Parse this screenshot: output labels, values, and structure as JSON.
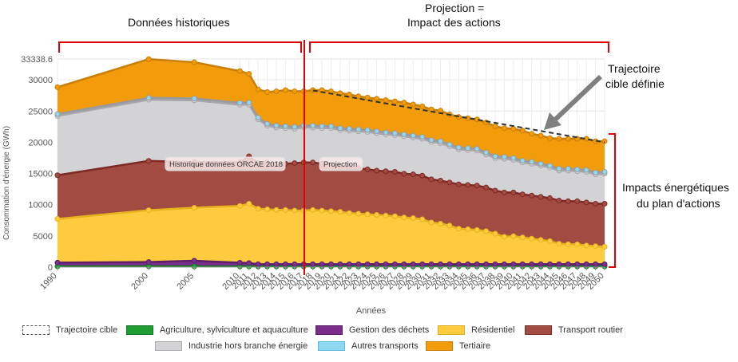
{
  "annotations": {
    "historical": "Données historiques",
    "projection_line1": "Projection =",
    "projection_line2": "Impact des actions",
    "target_line1": "Trajectoire",
    "target_line2": "cible définie",
    "impacts_line1": "Impacts énergétiques",
    "impacts_line2": "du plan d'actions"
  },
  "colors": {
    "agriculture": "#1f9e34",
    "dechets": "#7b2d8b",
    "residentiel": "#fecb3e",
    "transport_routier": "#a24b43",
    "industrie": "#d3d3d6",
    "autres_transports": "#8fd6f0",
    "tertiaire": "#f29c0b",
    "red_marker": "#e00000",
    "arrow": "#7f7f7f"
  },
  "chart_data": {
    "type": "area",
    "stacked": true,
    "ylabel": "Consommation d'énergie (GWh)",
    "xlabel": "Années",
    "ylim": [
      0,
      33338.6
    ],
    "yticks": [
      "0",
      "5000",
      "10000",
      "15000",
      "20000",
      "25000",
      "30000",
      "33338.6"
    ],
    "x": [
      1990,
      2000,
      2005,
      2010,
      2011,
      2012,
      2013,
      2014,
      2015,
      2016,
      2017,
      2018,
      2019,
      2020,
      2021,
      2022,
      2023,
      2024,
      2025,
      2026,
      2027,
      2028,
      2029,
      2030,
      2031,
      2032,
      2033,
      2034,
      2035,
      2036,
      2037,
      2038,
      2039,
      2040,
      2041,
      2042,
      2043,
      2044,
      2045,
      2046,
      2047,
      2048,
      2049,
      2050
    ],
    "plot_labels": {
      "historique": "Historique données ORCAE 2018",
      "projection": "Projection"
    },
    "series": [
      {
        "name": "Agriculture, sylviculture et aquaculture",
        "values": [
          120,
          120,
          120,
          110,
          110,
          110,
          110,
          110,
          110,
          110,
          110,
          110,
          110,
          110,
          110,
          110,
          110,
          110,
          110,
          110,
          110,
          110,
          110,
          110,
          110,
          110,
          110,
          110,
          110,
          110,
          110,
          110,
          110,
          110,
          110,
          110,
          110,
          110,
          110,
          110,
          110,
          110,
          110,
          110
        ]
      },
      {
        "name": "Gestion des déchets",
        "values": [
          600,
          700,
          900,
          600,
          550,
          350,
          350,
          350,
          350,
          350,
          350,
          350,
          350,
          350,
          350,
          350,
          350,
          350,
          350,
          350,
          350,
          350,
          350,
          350,
          350,
          350,
          350,
          350,
          350,
          350,
          350,
          350,
          350,
          350,
          350,
          350,
          350,
          350,
          350,
          350,
          350,
          350,
          350,
          350
        ]
      },
      {
        "name": "Résidentiel",
        "values": [
          7000,
          8300,
          8500,
          9100,
          9500,
          8900,
          8800,
          8700,
          8700,
          8600,
          8600,
          8700,
          8600,
          8500,
          8400,
          8200,
          8100,
          8000,
          7900,
          7800,
          7700,
          7500,
          7400,
          7200,
          6700,
          6500,
          6200,
          5700,
          5600,
          5500,
          5300,
          4900,
          4400,
          4500,
          4300,
          4100,
          3900,
          3700,
          3300,
          3200,
          3200,
          3000,
          2900,
          2800
        ]
      },
      {
        "name": "Transport routier",
        "values": [
          7000,
          7900,
          7300,
          7000,
          7600,
          7300,
          7500,
          7400,
          7400,
          7600,
          7700,
          7600,
          7500,
          7500,
          7300,
          7300,
          7300,
          7200,
          7100,
          7100,
          7100,
          7000,
          7000,
          7000,
          6900,
          6900,
          6900,
          7100,
          7100,
          7100,
          7000,
          6900,
          7100,
          7000,
          6900,
          6900,
          6900,
          6900,
          6900,
          6900,
          6900,
          6900,
          6800,
          6900
        ]
      },
      {
        "name": "Industrie hors branche énergie",
        "values": [
          9500,
          9800,
          9900,
          9200,
          8300,
          7000,
          5900,
          5800,
          5700,
          5500,
          5600,
          5600,
          5700,
          5800,
          5800,
          5900,
          5900,
          6000,
          6000,
          5900,
          5900,
          6000,
          5900,
          5900,
          6000,
          6000,
          5800,
          5600,
          5600,
          5600,
          5300,
          5200,
          5400,
          5200,
          5100,
          5100,
          5000,
          4900,
          4800,
          4900,
          4800,
          4900,
          4700,
          4800
        ]
      },
      {
        "name": "Autres transports",
        "values": [
          300,
          300,
          300,
          300,
          300,
          300,
          300,
          300,
          300,
          300,
          300,
          300,
          300,
          300,
          300,
          300,
          300,
          300,
          300,
          300,
          300,
          300,
          300,
          300,
          300,
          300,
          300,
          300,
          300,
          300,
          300,
          300,
          300,
          300,
          300,
          300,
          300,
          300,
          300,
          300,
          300,
          300,
          300,
          300
        ]
      },
      {
        "name": "Tertiaire",
        "values": [
          4300,
          6200,
          5800,
          5100,
          4600,
          4500,
          5100,
          5500,
          5800,
          5700,
          5500,
          5700,
          5800,
          5600,
          5600,
          5500,
          5300,
          5200,
          5200,
          5200,
          5100,
          5100,
          5000,
          4900,
          4900,
          4900,
          4800,
          4900,
          4800,
          4700,
          4800,
          4800,
          4600,
          4700,
          4800,
          4500,
          4500,
          4400,
          4800,
          4800,
          4900,
          5000,
          5000,
          4900
        ]
      }
    ],
    "target": {
      "name": "Trajectoire cible",
      "x": [
        2018,
        2050
      ],
      "y": [
        28300,
        20000
      ]
    },
    "legend": {
      "items": [
        {
          "label": "Trajectoire cible",
          "swatch": "dashed"
        },
        {
          "label": "Agriculture, sylviculture et aquaculture",
          "swatch": "agriculture"
        },
        {
          "label": "Gestion des déchets",
          "swatch": "dechets"
        },
        {
          "label": "Résidentiel",
          "swatch": "residentiel"
        },
        {
          "label": "Transport routier",
          "swatch": "transport_routier"
        },
        {
          "label": "Industrie hors branche énergie",
          "swatch": "industrie"
        },
        {
          "label": "Autres transports",
          "swatch": "autres_transports"
        },
        {
          "label": "Tertiaire",
          "swatch": "tertiaire"
        }
      ]
    }
  }
}
